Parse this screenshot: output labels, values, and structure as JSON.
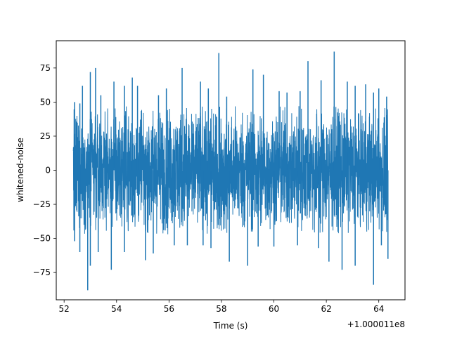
{
  "chart_data": {
    "type": "line",
    "xlabel": "Time (s)",
    "ylabel": "whitened-noise",
    "x_offset_label": "+1.000011e8",
    "xlim": [
      51.7,
      65.0
    ],
    "ylim": [
      -95,
      95
    ],
    "x_ticks": [
      52,
      54,
      56,
      58,
      60,
      62,
      64
    ],
    "x_tick_labels": [
      "52",
      "54",
      "56",
      "58",
      "60",
      "62",
      "64"
    ],
    "y_ticks": [
      -75,
      -50,
      -25,
      0,
      25,
      50,
      75
    ],
    "y_tick_labels": [
      "−75",
      "−50",
      "−25",
      "0",
      "25",
      "50",
      "75"
    ],
    "grid": false,
    "series": [
      {
        "x_range": [
          52.35,
          64.35
        ],
        "envelope_upper": 47,
        "envelope_lower": -47,
        "peaks": [
          {
            "x": 52.4,
            "y": 50
          },
          {
            "x": 52.6,
            "y": 49
          },
          {
            "x": 52.7,
            "y": 62
          },
          {
            "x": 53.0,
            "y": 72
          },
          {
            "x": 53.2,
            "y": 75
          },
          {
            "x": 53.4,
            "y": 55
          },
          {
            "x": 53.9,
            "y": 65
          },
          {
            "x": 54.3,
            "y": 62
          },
          {
            "x": 54.6,
            "y": 68
          },
          {
            "x": 54.8,
            "y": 62
          },
          {
            "x": 55.6,
            "y": 55
          },
          {
            "x": 55.9,
            "y": 60
          },
          {
            "x": 56.5,
            "y": 75
          },
          {
            "x": 57.2,
            "y": 65
          },
          {
            "x": 57.5,
            "y": 60
          },
          {
            "x": 57.9,
            "y": 86
          },
          {
            "x": 58.2,
            "y": 54
          },
          {
            "x": 59.2,
            "y": 74
          },
          {
            "x": 59.6,
            "y": 70
          },
          {
            "x": 60.2,
            "y": 58
          },
          {
            "x": 60.5,
            "y": 57
          },
          {
            "x": 61.0,
            "y": 58
          },
          {
            "x": 61.3,
            "y": 80
          },
          {
            "x": 61.8,
            "y": 66
          },
          {
            "x": 62.3,
            "y": 87
          },
          {
            "x": 62.8,
            "y": 65
          },
          {
            "x": 63.1,
            "y": 62
          },
          {
            "x": 63.5,
            "y": 63
          },
          {
            "x": 63.8,
            "y": 57
          },
          {
            "x": 64.0,
            "y": 60
          },
          {
            "x": 64.3,
            "y": 54
          }
        ],
        "troughs": [
          {
            "x": 52.4,
            "y": -52
          },
          {
            "x": 52.6,
            "y": -60
          },
          {
            "x": 52.9,
            "y": -88
          },
          {
            "x": 53.0,
            "y": -70
          },
          {
            "x": 53.3,
            "y": -60
          },
          {
            "x": 53.8,
            "y": -73
          },
          {
            "x": 54.3,
            "y": -60
          },
          {
            "x": 55.1,
            "y": -66
          },
          {
            "x": 55.4,
            "y": -61
          },
          {
            "x": 56.2,
            "y": -55
          },
          {
            "x": 56.7,
            "y": -55
          },
          {
            "x": 57.3,
            "y": -55
          },
          {
            "x": 57.6,
            "y": -57
          },
          {
            "x": 58.3,
            "y": -67
          },
          {
            "x": 59.0,
            "y": -70
          },
          {
            "x": 59.4,
            "y": -56
          },
          {
            "x": 60.0,
            "y": -56
          },
          {
            "x": 60.9,
            "y": -55
          },
          {
            "x": 61.7,
            "y": -57
          },
          {
            "x": 62.1,
            "y": -67
          },
          {
            "x": 62.6,
            "y": -73
          },
          {
            "x": 63.1,
            "y": -70
          },
          {
            "x": 63.8,
            "y": -84
          },
          {
            "x": 64.1,
            "y": -55
          },
          {
            "x": 64.35,
            "y": -65
          }
        ]
      }
    ]
  },
  "colors": {
    "line": "#1f77b4",
    "axes": "#000000",
    "background": "#ffffff"
  }
}
